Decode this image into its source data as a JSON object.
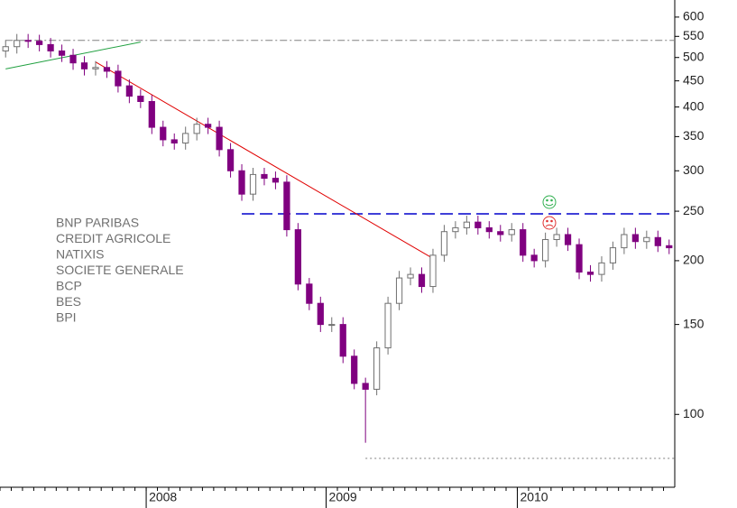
{
  "chart_data": {
    "type": "candlestick",
    "log_scale": true,
    "rising_color": "#ffffff",
    "rising_edge": "#707070",
    "falling_color": "#800080",
    "ylim": [
      72,
      648
    ],
    "yticks": [
      100,
      150,
      200,
      250,
      300,
      350,
      400,
      450,
      500,
      550,
      600
    ],
    "legend_items": [
      "BNP PARIBAS",
      "CREDIT AGRICOLE",
      "NATIXIS",
      "SOCIETE GENERALE",
      "BCP",
      "BES",
      "BPI"
    ],
    "categories": [
      null,
      null,
      null,
      null,
      null,
      null,
      null,
      null,
      null,
      null,
      null,
      null,
      null,
      "2008",
      null,
      null,
      null,
      null,
      null,
      null,
      null,
      null,
      null,
      null,
      null,
      null,
      null,
      null,
      null,
      "2009",
      null,
      null,
      null,
      null,
      null,
      null,
      null,
      null,
      null,
      null,
      null,
      null,
      null,
      null,
      null,
      null,
      "2010",
      null,
      null,
      null,
      null,
      null,
      null,
      null,
      null,
      null,
      null,
      null,
      null,
      null
    ],
    "open": [
      515,
      525,
      540,
      538,
      530,
      515,
      505,
      488,
      475,
      478,
      470,
      440,
      420,
      410,
      365,
      345,
      340,
      355,
      370,
      365,
      330,
      300,
      270,
      295,
      290,
      285,
      230,
      180,
      165,
      150,
      150,
      130,
      115,
      112,
      135,
      165,
      185,
      188,
      178,
      205,
      228,
      232,
      238,
      232,
      228,
      225,
      230,
      205,
      200,
      220,
      225,
      215,
      190,
      188,
      198,
      212,
      225,
      218,
      222,
      214
    ],
    "high": [
      541,
      556,
      556,
      554,
      546,
      530,
      520,
      503,
      492,
      492,
      484,
      453,
      433,
      422,
      376,
      355,
      366,
      381,
      381,
      376,
      340,
      309,
      304,
      304,
      299,
      294,
      237,
      185,
      170,
      155,
      155,
      134,
      118,
      139,
      170,
      191,
      194,
      194,
      211,
      235,
      239,
      245,
      245,
      239,
      235,
      237,
      237,
      211,
      227,
      232,
      232,
      221,
      196,
      204,
      218,
      232,
      232,
      229,
      229,
      220
    ],
    "low": [
      500,
      509,
      522,
      514,
      500,
      490,
      473,
      461,
      461,
      456,
      427,
      407,
      398,
      354,
      335,
      330,
      330,
      344,
      354,
      320,
      291,
      262,
      262,
      281,
      276,
      223,
      175,
      160,
      145,
      145,
      126,
      112,
      88,
      109,
      131,
      160,
      179,
      173,
      173,
      199,
      221,
      225,
      225,
      221,
      218,
      218,
      199,
      194,
      194,
      213,
      209,
      184,
      182,
      182,
      192,
      206,
      211,
      211,
      208,
      206
    ],
    "close": [
      525,
      540,
      538,
      530,
      515,
      505,
      488,
      475,
      478,
      470,
      440,
      420,
      410,
      365,
      345,
      340,
      355,
      370,
      365,
      330,
      300,
      270,
      295,
      290,
      285,
      230,
      180,
      165,
      150,
      150,
      130,
      115,
      112,
      135,
      165,
      185,
      188,
      178,
      205,
      228,
      232,
      238,
      232,
      228,
      225,
      230,
      205,
      200,
      220,
      225,
      215,
      190,
      188,
      198,
      212,
      225,
      218,
      222,
      214,
      212
    ],
    "hlines": [
      {
        "value": 540,
        "from": 0,
        "color": "#808080",
        "dash": "8 3 2 3"
      },
      {
        "value": 247,
        "from": 21,
        "color": "#0000cc",
        "dash": "14 6"
      },
      {
        "value": 82,
        "from": 32,
        "color": "#808080",
        "dash": "2 3"
      }
    ],
    "trendlines": [
      {
        "from": [
          8,
          490
        ],
        "to": [
          38,
          202
        ],
        "color": "#e00000"
      },
      {
        "from": [
          0,
          475
        ],
        "to": [
          12,
          536
        ],
        "color": "#20a040"
      }
    ]
  }
}
